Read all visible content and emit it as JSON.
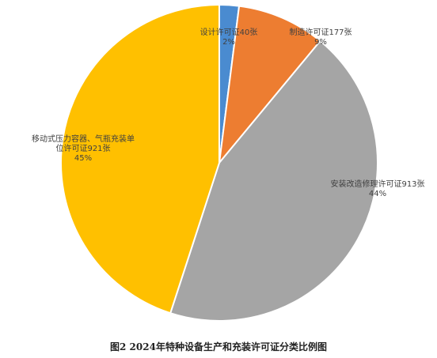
{
  "chart_data": {
    "type": "pie",
    "title": "图2  2024年特种设备生产和充装许可证分类比例图",
    "categories": [
      "设计许可证40张",
      "制造许可证177张",
      "安装改造修理许可证913张",
      "移动式压力容器、气瓶充装单位许可证921张"
    ],
    "values": [
      2,
      9,
      44,
      45
    ],
    "value_labels": [
      "2%",
      "9%",
      "44%",
      "45%"
    ],
    "colors": [
      "#4a8bd0",
      "#ed7d31",
      "#a5a5a5",
      "#ffc000"
    ]
  }
}
